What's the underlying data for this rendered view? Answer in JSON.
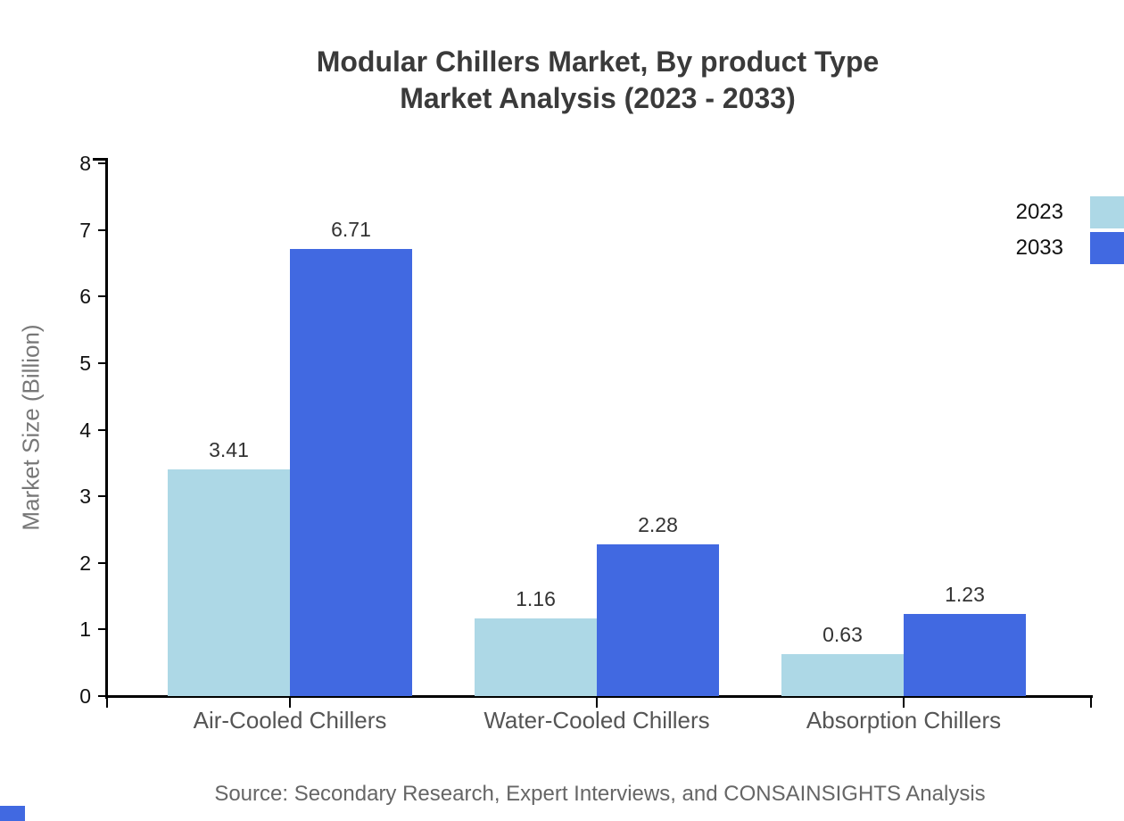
{
  "chart_data": {
    "type": "bar",
    "title": "Modular Chillers Market, By product Type",
    "subtitle": "Market Analysis (2023 - 2033)",
    "categories": [
      "Air-Cooled Chillers",
      "Water-Cooled Chillers",
      "Absorption Chillers"
    ],
    "series": [
      {
        "name": "2023",
        "color": "#ADD8E6",
        "values": [
          3.41,
          1.16,
          0.63
        ]
      },
      {
        "name": "2033",
        "color": "#4169E1",
        "values": [
          6.71,
          2.28,
          1.23
        ]
      }
    ],
    "value_labels": [
      [
        "3.41",
        "1.16",
        "0.63"
      ],
      [
        "6.71",
        "2.28",
        "1.23"
      ]
    ],
    "ylabel": "Market Size (Billion)",
    "xlabel": "",
    "ylim": [
      0,
      8
    ],
    "yticks": [
      0,
      1,
      2,
      3,
      4,
      5,
      6,
      7,
      8
    ],
    "legend_position": "top-right",
    "grid": false
  },
  "footer": {
    "source": "Source: Secondary Research, Expert Interviews, and CONSAINSIGHTS Analysis"
  },
  "colors": {
    "series_2023": "#ADD8E6",
    "series_2033": "#4169E1",
    "axis": "#000000",
    "title_text": "#3A3A3A",
    "tick_text": "#111111",
    "category_text": "#555555",
    "value_text": "#333333",
    "ylabel_text": "#777777",
    "source_text": "#666666",
    "background": "#FFFFFF",
    "corner_accent": "#4169E1"
  }
}
